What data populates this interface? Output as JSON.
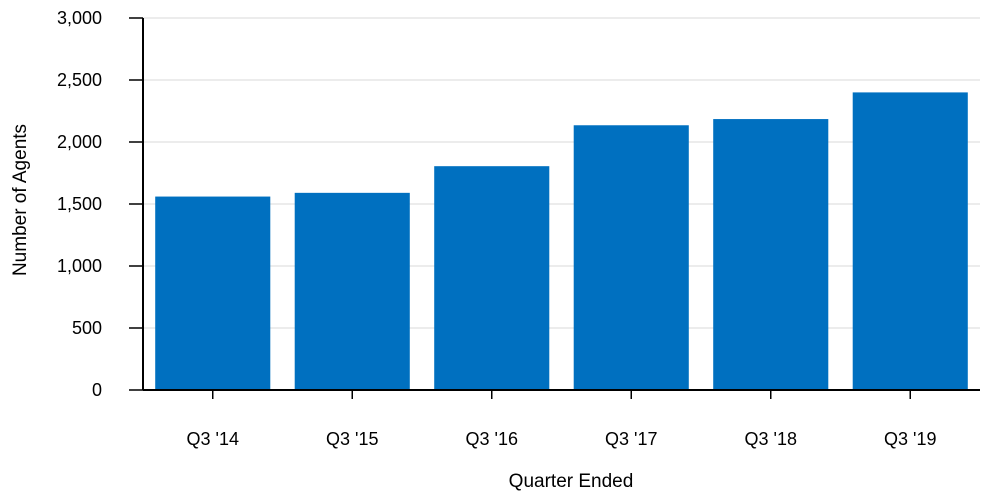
{
  "chart_data": {
    "type": "bar",
    "title": "",
    "xlabel": "Quarter Ended",
    "ylabel": "Number of Agents",
    "categories": [
      "Q3 '14",
      "Q3 '15",
      "Q3 '16",
      "Q3 '17",
      "Q3 '18",
      "Q3 '19"
    ],
    "values": [
      1560,
      1590,
      1805,
      2135,
      2185,
      2400
    ],
    "ylim": [
      0,
      3000
    ],
    "yticks": [
      0,
      500,
      1000,
      1500,
      2000,
      2500,
      3000
    ],
    "ytick_labels": [
      "0",
      "500",
      "1,000",
      "1,500",
      "2,000",
      "2,500",
      "3,000"
    ],
    "grid": true,
    "legend": "none",
    "bar_color": "#0070c0",
    "grid_color": "#d9d9d9",
    "axis_color": "#000000"
  }
}
